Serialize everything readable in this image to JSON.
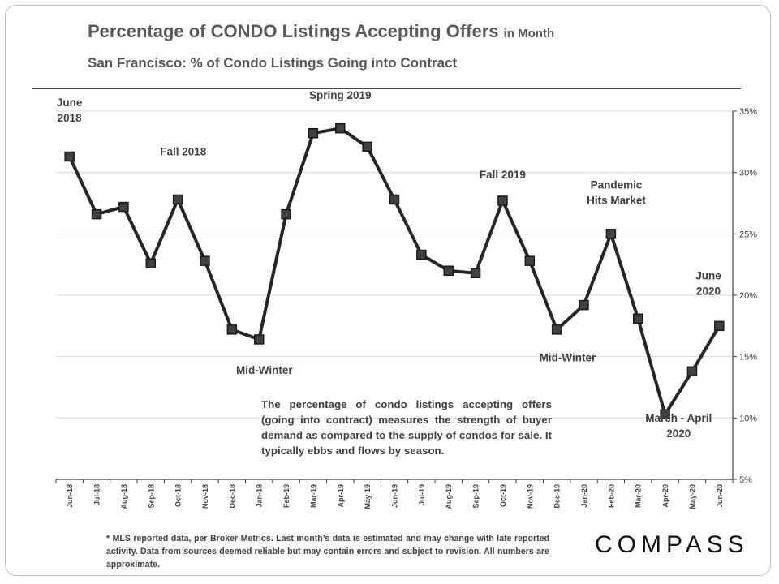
{
  "header": {
    "title": "Percentage of CONDO Listings Accepting Offers",
    "title_suffix": "in Month",
    "subtitle": "San Francisco: % of Condo Listings Going into Contract"
  },
  "note": "The percentage of condo listings accepting offers (going into contract) measures the strength of buyer demand as compared to the supply of condos for sale. It typically ebbs and flows by season.",
  "footnote": "* MLS reported data, per Broker Metrics. Last month’s data is estimated and may change with late reported activity. Data from sources deemed reliable but may contain errors and subject to revision. All numbers are approximate.",
  "brand": "COMPASS",
  "colors": {
    "line": "#262626",
    "marker": "#404040",
    "grid": "#d9d9d9",
    "axis": "#404040",
    "text": "#595959"
  },
  "chart_data": {
    "type": "line",
    "title": "Percentage of CONDO Listings Accepting Offers in Month",
    "subtitle": "San Francisco: % of Condo Listings Going into Contract",
    "categories": [
      "Jun-18",
      "Jul-18",
      "Aug-18",
      "Sep-18",
      "Oct-18",
      "Nov-18",
      "Dec-18",
      "Jan-19",
      "Feb-19",
      "Mar-19",
      "Apr-19",
      "May-19",
      "Jun-19",
      "Jul-19",
      "Aug-19",
      "Sep-19",
      "Oct-19",
      "Nov-19",
      "Dec-19",
      "Jan-20",
      "Feb-20",
      "Mar-20",
      "Apr-20",
      "May-20",
      "Jun-20"
    ],
    "series": [
      {
        "name": "% of Condo Listings Going into Contract",
        "values": [
          31.3,
          26.6,
          27.2,
          22.6,
          27.8,
          22.8,
          17.2,
          16.4,
          26.6,
          33.2,
          33.6,
          32.1,
          27.8,
          23.3,
          22.0,
          21.8,
          27.7,
          22.8,
          17.2,
          19.2,
          25.0,
          18.1,
          10.3,
          13.8,
          17.5
        ]
      }
    ],
    "ylim": [
      5,
      35
    ],
    "yticks": [
      5,
      10,
      15,
      20,
      25,
      30,
      35
    ],
    "ytick_labels": [
      "5%",
      "10%",
      "15%",
      "20%",
      "25%",
      "30%",
      "35%"
    ],
    "y_axis_side": "right",
    "grid": true,
    "annotations": [
      {
        "lines": [
          "June",
          "2018"
        ],
        "index": 0,
        "value": 35.4,
        "anchor": "middle"
      },
      {
        "lines": [
          "Fall 2018"
        ],
        "index": 4.2,
        "value": 31.4,
        "anchor": "middle"
      },
      {
        "lines": [
          "Spring 2019"
        ],
        "index": 10,
        "value": 36.0,
        "anchor": "middle"
      },
      {
        "lines": [
          "Mid-Winter"
        ],
        "index": 7.2,
        "value": 13.6,
        "anchor": "middle"
      },
      {
        "lines": [
          "Fall 2019"
        ],
        "index": 16,
        "value": 29.5,
        "anchor": "middle"
      },
      {
        "lines": [
          "Pandemic",
          "Hits Market"
        ],
        "index": 20.2,
        "value": 28.7,
        "anchor": "middle"
      },
      {
        "lines": [
          "Mid-Winter"
        ],
        "index": 18.4,
        "value": 14.6,
        "anchor": "middle"
      },
      {
        "lines": [
          "March - April",
          "2020"
        ],
        "index": 22.5,
        "value": 9.7,
        "anchor": "middle"
      },
      {
        "lines": [
          "June",
          "2020"
        ],
        "index": 23.6,
        "value": 21.3,
        "anchor": "middle"
      }
    ]
  }
}
